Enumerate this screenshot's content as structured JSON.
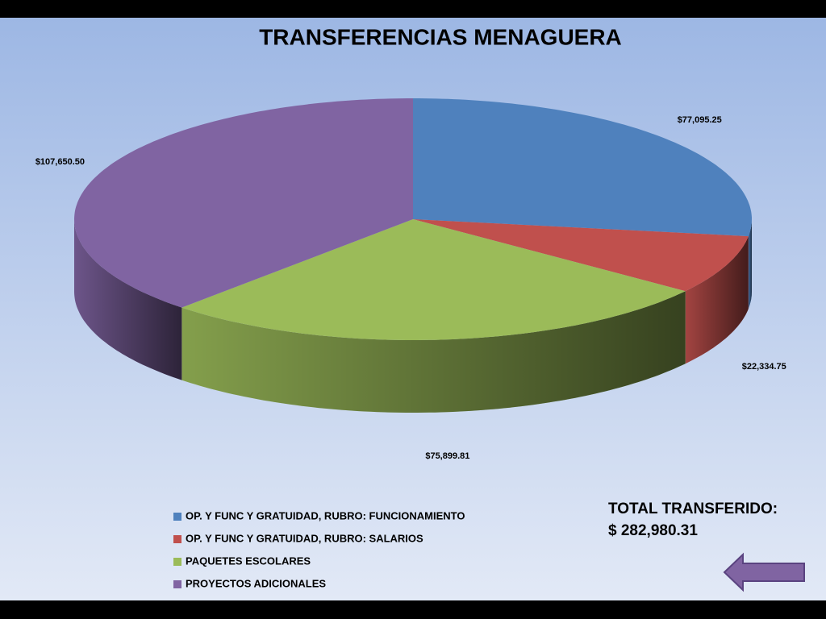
{
  "chart_data": {
    "type": "pie3d",
    "title": "TRANSFERENCIAS MENAGUERA",
    "categories": [
      "OP. Y FUNC Y GRATUIDAD,  RUBRO: FUNCIONAMIENTO",
      "OP. Y FUNC Y GRATUIDAD,  RUBRO: SALARIOS",
      "PAQUETES ESCOLARES",
      "PROYECTOS  ADICIONALES"
    ],
    "values": [
      77095.25,
      22334.75,
      75899.81,
      107650.5
    ],
    "value_labels": [
      "$77,095.25",
      "$22,334.75",
      "$75,899.81",
      "$107,650.50"
    ],
    "colors": [
      "#4f81bd",
      "#c0504d",
      "#9bbb59",
      "#8064a2"
    ],
    "legend": "bottom-left",
    "annotations": [
      "TOTAL TRANSFERIDO:",
      "$ 282,980.31"
    ]
  }
}
